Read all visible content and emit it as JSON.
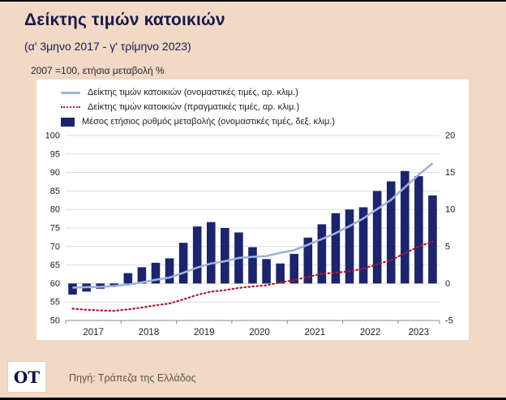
{
  "header": {
    "title": "Δείκτης τιμών κατοικιών",
    "subtitle": "(α' 3μηνο 2017 - γ' τρίμηνο 2023)",
    "units_note": "2007 =100, ετήσια μεταβολή %"
  },
  "chart_data": {
    "type": "bar+line combo",
    "legend_position": "top-left inside plot card",
    "grid": "horizontal gridlines on, white plot background",
    "quarters": [
      "Q1 2017",
      "Q2 2017",
      "Q3 2017",
      "Q4 2017",
      "Q1 2018",
      "Q2 2018",
      "Q3 2018",
      "Q4 2018",
      "Q1 2019",
      "Q2 2019",
      "Q3 2019",
      "Q4 2019",
      "Q1 2020",
      "Q2 2020",
      "Q3 2020",
      "Q4 2020",
      "Q1 2021",
      "Q2 2021",
      "Q3 2021",
      "Q4 2021",
      "Q1 2022",
      "Q2 2022",
      "Q3 2022",
      "Q4 2022",
      "Q1 2023",
      "Q2 2023",
      "Q3 2023"
    ],
    "x_year_labels": [
      "2017",
      "2018",
      "2019",
      "2020",
      "2021",
      "2022",
      "2023"
    ],
    "left_axis": {
      "min": 50,
      "max": 100,
      "step": 5,
      "label": "2007 =100"
    },
    "right_axis": {
      "min": -5,
      "max": 20,
      "step": 5,
      "label": "ετήσια μεταβολή %"
    },
    "series": [
      {
        "name": "Δείκτης τιμών κατοικιών (ονομαστικές τιμές, αρ. κλιμ.)",
        "type": "line",
        "axis": "left",
        "color": "#9fb2dc",
        "values": [
          58.9,
          59.0,
          59.1,
          59.3,
          59.7,
          60.3,
          61.0,
          61.6,
          62.9,
          64.3,
          65.4,
          66.0,
          66.9,
          67.2,
          67.4,
          68.3,
          69.0,
          70.5,
          72.0,
          73.6,
          75.5,
          77.6,
          80.1,
          82.6,
          86.0,
          89.4,
          92.5
        ]
      },
      {
        "name": "Δείκτης τιμών κατοικιών (πραγματικές τιμές, αρ. κλιμ.)",
        "type": "line-dotted",
        "axis": "left",
        "color": "#a81f2f",
        "values": [
          53.2,
          52.9,
          52.7,
          52.6,
          53.0,
          53.5,
          54.1,
          54.6,
          55.7,
          56.9,
          57.8,
          58.2,
          58.8,
          59.2,
          59.5,
          60.3,
          60.9,
          61.8,
          62.6,
          62.9,
          63.3,
          64.0,
          65.2,
          66.3,
          68.2,
          70.0,
          71.3
        ]
      },
      {
        "name": "Μέσος ετήσιος ρυθμός μεταβολής (ονομαστικές τιμές, δεξ. κλιμ.)",
        "type": "bar",
        "axis": "right",
        "color": "#1c246b",
        "values": [
          -1.5,
          -1.1,
          -0.7,
          -0.4,
          1.4,
          2.2,
          2.8,
          3.4,
          5.5,
          7.7,
          8.3,
          7.5,
          6.9,
          4.9,
          3.3,
          2.7,
          4.0,
          6.2,
          8.0,
          9.5,
          10.0,
          10.3,
          12.5,
          13.8,
          15.2,
          14.5,
          11.9
        ]
      }
    ]
  },
  "footer": {
    "logo": "OT",
    "source": "Πηγή: Τράπεζα της Ελλάδος"
  },
  "colors": {
    "page_background": "#f2d9c5",
    "title_navy": "#15194f",
    "bar_navy": "#1c246b",
    "nominal_line_blue": "#9fb2dc",
    "real_line_red": "#a81f2f",
    "plot_background": "#ffffff",
    "gridline": "#dcdcdc"
  }
}
